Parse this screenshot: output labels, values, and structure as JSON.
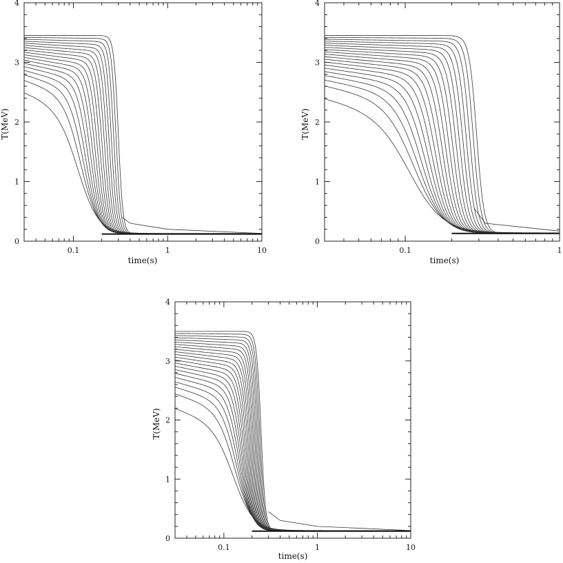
{
  "figure": {
    "description_note": ""
  },
  "chart_data": [
    {
      "type": "line",
      "xlabel": "time(s)",
      "ylabel": "T(MeV)",
      "x_scale": "log",
      "xlim": [
        0.03,
        10
      ],
      "ylim": [
        0,
        4
      ],
      "x_tick_labels": [
        "0.1",
        "1",
        "10"
      ],
      "y_tick_labels": [
        "0",
        "1",
        "2",
        "3",
        "4"
      ],
      "family": {
        "count": 18,
        "plateau_min": 2.5,
        "plateau_max": 3.45,
        "drop_start_min": 0.115,
        "drop_end_max": 0.3,
        "tail_value": 0.12
      },
      "extra_trace": {
        "x": [
          0.33,
          0.4,
          1,
          10
        ],
        "y": [
          0.4,
          0.3,
          0.2,
          0.13
        ]
      }
    },
    {
      "type": "line",
      "xlabel": "time(s)",
      "ylabel": "T(MeV)",
      "x_scale": "log",
      "xlim": [
        0.03,
        1
      ],
      "ylim": [
        0,
        4
      ],
      "x_tick_labels": [
        "0.1",
        "1"
      ],
      "y_tick_labels": [
        "0",
        "1",
        "2",
        "3",
        "4"
      ],
      "family": {
        "count": 20,
        "plateau_min": 2.4,
        "plateau_max": 3.45,
        "drop_start_min": 0.11,
        "drop_end_max": 0.29,
        "tail_value": 0.13
      },
      "extra_trace": {
        "x": [
          0.28,
          0.33,
          1
        ],
        "y": [
          0.55,
          0.3,
          0.17
        ]
      }
    },
    {
      "type": "line",
      "xlabel": "time(s)",
      "ylabel": "T(MeV)",
      "x_scale": "log",
      "xlim": [
        0.03,
        10
      ],
      "ylim": [
        0,
        4
      ],
      "x_tick_labels": [
        "0.1",
        "1",
        "10"
      ],
      "y_tick_labels": [
        "0",
        "1",
        "2",
        "3",
        "4"
      ],
      "family": {
        "count": 22,
        "plateau_min": 2.2,
        "plateau_max": 3.5,
        "drop_start_min": 0.13,
        "drop_end_max": 0.25,
        "tail_value": 0.12
      },
      "extra_trace": {
        "x": [
          0.3,
          0.4,
          1,
          10
        ],
        "y": [
          0.45,
          0.3,
          0.2,
          0.13
        ]
      }
    }
  ]
}
